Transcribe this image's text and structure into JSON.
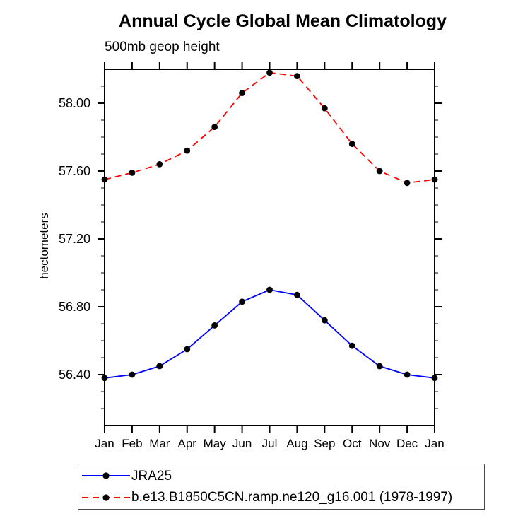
{
  "title": "Annual Cycle Global Mean Climatology",
  "subtitle": "500mb geop height",
  "ylabel": "hectometers",
  "legend": {
    "entries": [
      {
        "label": "JRA25",
        "color": "#0000ff",
        "line_style": "solid",
        "marker": "filled-circle",
        "marker_color": "#000000"
      },
      {
        "label": "b.e13.B1850C5CN.ramp.ne120_g16.001 (1978-1997)",
        "color": "#ff0000",
        "line_style": "dashed",
        "marker": "filled-circle",
        "marker_color": "#000000"
      }
    ]
  },
  "chart_data": {
    "type": "line",
    "title": "Annual Cycle Global Mean Climatology",
    "subtitle": "500mb geop height",
    "xlabel": "",
    "ylabel": "hectometers",
    "x_categories": [
      "Jan",
      "Feb",
      "Mar",
      "Apr",
      "May",
      "Jun",
      "Jul",
      "Aug",
      "Sep",
      "Oct",
      "Nov",
      "Dec",
      "Jan"
    ],
    "ylim": [
      56.1,
      58.2
    ],
    "ytick_major_values": [
      58.0,
      57.6,
      57.2,
      56.8,
      56.4
    ],
    "ytick_major_labels": [
      "58.00",
      "57.60",
      "57.20",
      "56.80",
      "56.40"
    ],
    "ytick_minor_step": 0.1,
    "grid": false,
    "legend_position": "bottom-left-box",
    "frame_color": "#000000",
    "series": [
      {
        "name": "JRA25",
        "color": "#0000ff",
        "line_style": "solid",
        "marker": "circle",
        "marker_color": "#000000",
        "values": [
          56.38,
          56.4,
          56.45,
          56.55,
          56.69,
          56.83,
          56.9,
          56.87,
          56.72,
          56.57,
          56.45,
          56.4,
          56.38
        ]
      },
      {
        "name": "b.e13.B1850C5CN.ramp.ne120_g16.001 (1978-1997)",
        "color": "#ff0000",
        "line_style": "dashed",
        "marker": "circle",
        "marker_color": "#000000",
        "values": [
          57.55,
          57.59,
          57.64,
          57.72,
          57.86,
          58.06,
          58.18,
          58.16,
          57.97,
          57.76,
          57.6,
          57.53,
          57.55
        ]
      }
    ]
  }
}
